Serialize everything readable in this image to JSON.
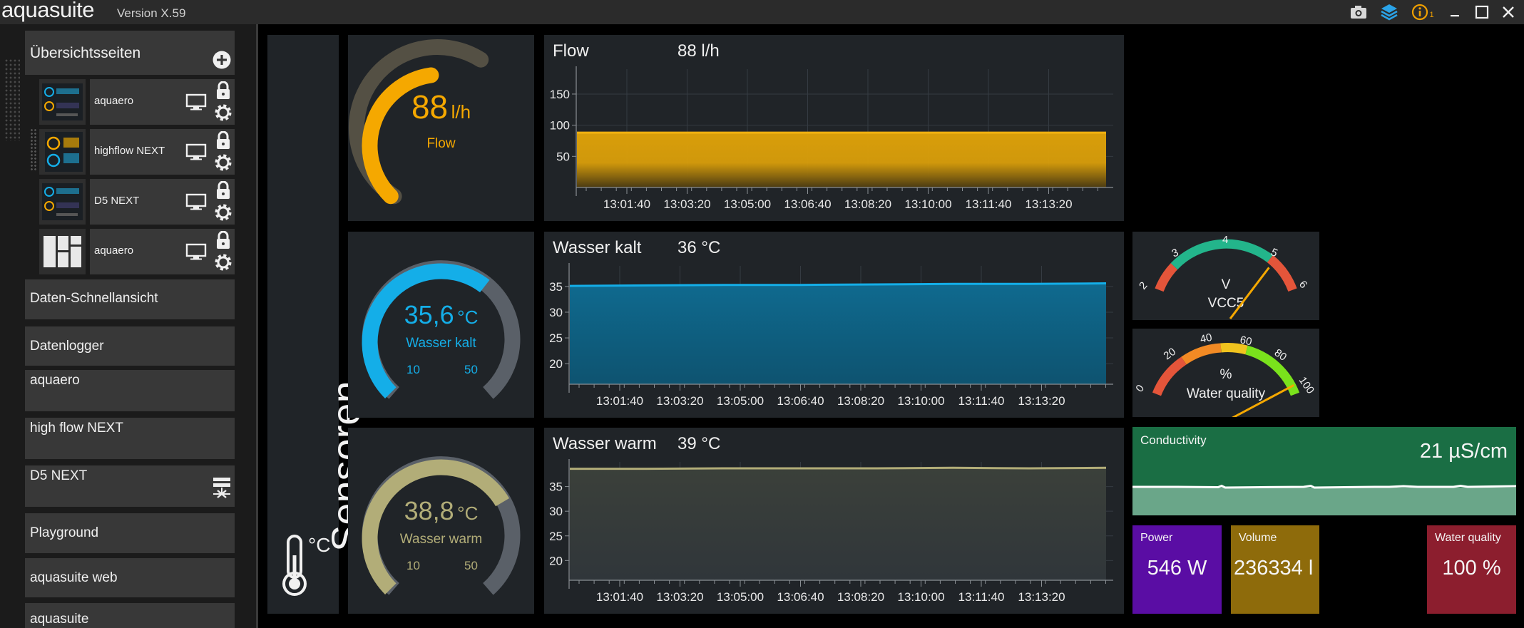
{
  "app": {
    "name": "aquasuite",
    "version": "Version X.59"
  },
  "titlebar": {
    "icons": [
      "camera-icon",
      "layers-icon",
      "info-icon",
      "minimize-icon",
      "maximize-icon",
      "close-icon"
    ],
    "info_badge": "1",
    "accent": "#f0a000"
  },
  "sidebar": {
    "header": "Übersichtsseiten",
    "pages": [
      {
        "label": "aquaero"
      },
      {
        "label": "highflow NEXT"
      },
      {
        "label": "D5 NEXT"
      },
      {
        "label": "aquaero"
      }
    ],
    "items": [
      {
        "label": "Daten-Schnellansicht"
      },
      {
        "label": "Datenlogger"
      },
      {
        "label": "aquaero"
      },
      {
        "label": "high flow NEXT"
      },
      {
        "label": "D5 NEXT"
      },
      {
        "label": "Playground"
      },
      {
        "label": "aquasuite web"
      },
      {
        "label": "aquasuite"
      }
    ]
  },
  "page": {
    "title": "Sensoren",
    "unit_icon_label": "°C"
  },
  "gauges": [
    {
      "value": "88",
      "unit": "l/h",
      "label": "Flow",
      "color": "#f5a800",
      "level": 0.47
    },
    {
      "value": "35,6",
      "unit": "°C",
      "label": "Wasser kalt",
      "min": "10",
      "max": "50",
      "color": "#14aee8",
      "level": 0.64
    },
    {
      "value": "38,8",
      "unit": "°C",
      "label": "Wasser warm",
      "min": "10",
      "max": "50",
      "color": "#b2ad78",
      "level": 0.72
    }
  ],
  "charts": [
    {
      "title": "Flow",
      "value": "88 l/h",
      "color": "#d99e0a",
      "y_ticks": [
        "150",
        "100",
        "50"
      ],
      "x_ticks": [
        "13:01:40",
        "13:03:20",
        "13:05:00",
        "13:06:40",
        "13:08:20",
        "13:10:00",
        "13:11:40",
        "13:13:20"
      ]
    },
    {
      "title": "Wasser kalt",
      "value": "36 °C",
      "color": "#14aee8",
      "y_ticks": [
        "35",
        "30",
        "25",
        "20"
      ],
      "x_ticks": [
        "13:01:40",
        "13:03:20",
        "13:05:00",
        "13:06:40",
        "13:08:20",
        "13:10:00",
        "13:11:40",
        "13:13:20"
      ]
    },
    {
      "title": "Wasser warm",
      "value": "39 °C",
      "color": "#b2ad78",
      "y_ticks": [
        "35",
        "30",
        "25",
        "20"
      ],
      "x_ticks": [
        "13:01:40",
        "13:03:20",
        "13:05:00",
        "13:06:40",
        "13:08:20",
        "13:10:00",
        "13:11:40",
        "13:13:20"
      ]
    }
  ],
  "chart_data": [
    {
      "type": "area",
      "title": "Flow",
      "x": [
        "13:01:40",
        "13:03:20",
        "13:05:00",
        "13:06:40",
        "13:08:20",
        "13:10:00",
        "13:11:40",
        "13:13:20"
      ],
      "ylim": [
        0,
        190
      ],
      "series": [
        {
          "values": [
            88,
            88,
            88,
            88,
            88,
            88,
            88,
            88
          ]
        }
      ]
    },
    {
      "type": "area",
      "title": "Wasser kalt",
      "x": [
        "13:01:40",
        "13:03:20",
        "13:05:00",
        "13:06:40",
        "13:08:20",
        "13:10:00",
        "13:11:40",
        "13:13:20"
      ],
      "ylim": [
        16,
        39
      ],
      "series": [
        {
          "values": [
            35.1,
            35.2,
            35.3,
            35.3,
            35.4,
            35.5,
            35.5,
            35.6
          ]
        }
      ]
    },
    {
      "type": "line",
      "title": "Wasser warm",
      "x": [
        "13:01:40",
        "13:03:20",
        "13:05:00",
        "13:06:40",
        "13:08:20",
        "13:10:00",
        "13:11:40",
        "13:13:20"
      ],
      "ylim": [
        16,
        40
      ],
      "series": [
        {
          "values": [
            38.6,
            38.6,
            38.7,
            38.7,
            38.7,
            38.8,
            38.7,
            38.8
          ]
        }
      ]
    }
  ],
  "meters": [
    {
      "unit": "V",
      "label": "VCC5",
      "ticks": [
        "2",
        "3",
        "4",
        "5",
        "6"
      ],
      "value": 5.2
    },
    {
      "unit": "%",
      "label": "Water quality",
      "ticks": [
        "0",
        "20",
        "40",
        "60",
        "80",
        "100"
      ],
      "value": 100
    }
  ],
  "conductivity": {
    "label": "Conductivity",
    "value": "21 µS/cm",
    "color": "#1a6e44"
  },
  "tiles": [
    {
      "label": "Power",
      "value": "546 W",
      "color": "#5a0da4"
    },
    {
      "label": "Volume",
      "value": "236334 l",
      "color": "#8e6b0b"
    },
    {
      "label": "Water quality",
      "value": "100 %",
      "color": "#8c1e2e"
    }
  ]
}
